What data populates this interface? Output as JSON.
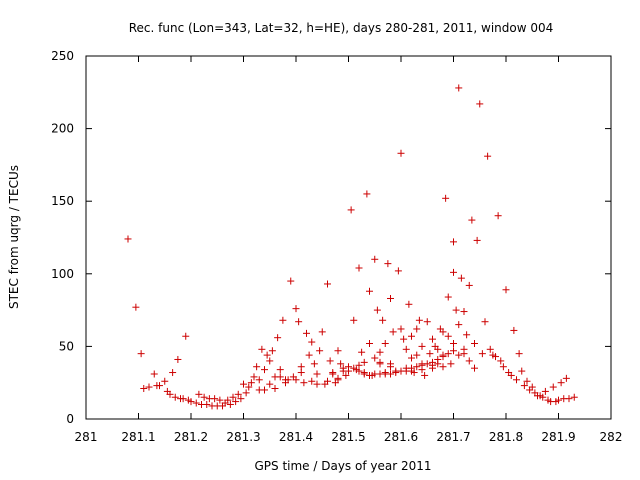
{
  "chart_data": {
    "type": "scatter",
    "title": "Rec. func (Lon=343, Lat=32, h=HE), days 280-281, 2011, window 004",
    "xlabel": "GPS time / Days of year 2011",
    "ylabel": "STEC from uqrg / TECUs",
    "xlim": [
      281,
      282
    ],
    "ylim": [
      0,
      250
    ],
    "xticks": [
      "281",
      "281.1",
      "281.2",
      "281.3",
      "281.4",
      "281.5",
      "281.6",
      "281.7",
      "281.8",
      "281.9",
      "282"
    ],
    "yticks": [
      "0",
      "50",
      "100",
      "150",
      "200",
      "250"
    ],
    "grid": false,
    "marker": "+",
    "color": "#cc0000",
    "series": [
      {
        "name": "STEC",
        "points": [
          [
            281.08,
            124
          ],
          [
            281.095,
            77
          ],
          [
            281.105,
            45
          ],
          [
            281.11,
            21
          ],
          [
            281.12,
            22
          ],
          [
            281.13,
            31
          ],
          [
            281.135,
            23
          ],
          [
            281.14,
            23
          ],
          [
            281.15,
            26
          ],
          [
            281.155,
            19
          ],
          [
            281.16,
            17
          ],
          [
            281.165,
            32
          ],
          [
            281.17,
            15
          ],
          [
            281.175,
            41
          ],
          [
            281.18,
            14
          ],
          [
            281.185,
            14
          ],
          [
            281.19,
            57
          ],
          [
            281.195,
            13
          ],
          [
            281.2,
            12
          ],
          [
            281.21,
            11
          ],
          [
            281.22,
            10
          ],
          [
            281.215,
            17
          ],
          [
            281.225,
            15
          ],
          [
            281.23,
            10
          ],
          [
            281.235,
            14
          ],
          [
            281.24,
            9
          ],
          [
            281.245,
            14
          ],
          [
            281.25,
            9
          ],
          [
            281.255,
            13
          ],
          [
            281.26,
            9
          ],
          [
            281.265,
            11
          ],
          [
            281.27,
            13
          ],
          [
            281.275,
            10
          ],
          [
            281.28,
            15
          ],
          [
            281.285,
            12
          ],
          [
            281.29,
            17
          ],
          [
            281.295,
            14
          ],
          [
            281.3,
            24
          ],
          [
            281.305,
            18
          ],
          [
            281.31,
            22
          ],
          [
            281.315,
            25
          ],
          [
            281.32,
            29
          ],
          [
            281.325,
            36
          ],
          [
            281.33,
            27
          ],
          [
            281.335,
            48
          ],
          [
            281.34,
            34
          ],
          [
            281.345,
            44
          ],
          [
            281.35,
            24
          ],
          [
            281.355,
            47
          ],
          [
            281.36,
            29
          ],
          [
            281.365,
            56
          ],
          [
            281.37,
            29
          ],
          [
            281.375,
            68
          ],
          [
            281.38,
            27
          ],
          [
            281.385,
            27
          ],
          [
            281.39,
            95
          ],
          [
            281.395,
            29
          ],
          [
            281.4,
            76
          ],
          [
            281.405,
            67
          ],
          [
            281.41,
            36
          ],
          [
            281.415,
            25
          ],
          [
            281.42,
            59
          ],
          [
            281.425,
            44
          ],
          [
            281.43,
            53
          ],
          [
            281.435,
            38
          ],
          [
            281.44,
            24
          ],
          [
            281.445,
            47
          ],
          [
            281.45,
            60
          ],
          [
            281.455,
            24
          ],
          [
            281.46,
            93
          ],
          [
            281.465,
            40
          ],
          [
            281.47,
            32
          ],
          [
            281.475,
            25
          ],
          [
            281.48,
            27
          ],
          [
            281.485,
            38
          ],
          [
            281.49,
            35
          ],
          [
            281.495,
            30
          ],
          [
            281.5,
            36
          ],
          [
            281.505,
            144
          ],
          [
            281.51,
            68
          ],
          [
            281.515,
            34
          ],
          [
            281.52,
            104
          ],
          [
            281.525,
            46
          ],
          [
            281.53,
            32
          ],
          [
            281.535,
            155
          ],
          [
            281.54,
            88
          ],
          [
            281.545,
            30
          ],
          [
            281.55,
            110
          ],
          [
            281.555,
            75
          ],
          [
            281.56,
            39
          ],
          [
            281.565,
            68
          ],
          [
            281.57,
            32
          ],
          [
            281.575,
            107
          ],
          [
            281.58,
            83
          ],
          [
            281.585,
            60
          ],
          [
            281.59,
            33
          ],
          [
            281.595,
            102
          ],
          [
            281.6,
            183
          ],
          [
            281.605,
            55
          ],
          [
            281.61,
            35
          ],
          [
            281.615,
            79
          ],
          [
            281.62,
            42
          ],
          [
            281.625,
            32
          ],
          [
            281.63,
            62
          ],
          [
            281.635,
            68
          ],
          [
            281.64,
            38
          ],
          [
            281.645,
            30
          ],
          [
            281.65,
            67
          ],
          [
            281.655,
            45
          ],
          [
            281.66,
            35
          ],
          [
            281.665,
            50
          ],
          [
            281.67,
            38
          ],
          [
            281.675,
            62
          ],
          [
            281.68,
            36
          ],
          [
            281.685,
            152
          ],
          [
            281.69,
            84
          ],
          [
            281.695,
            38
          ],
          [
            281.7,
            122
          ],
          [
            281.7,
            101
          ],
          [
            281.705,
            75
          ],
          [
            281.71,
            228
          ],
          [
            281.715,
            97
          ],
          [
            281.72,
            74
          ],
          [
            281.725,
            58
          ],
          [
            281.73,
            92
          ],
          [
            281.735,
            137
          ],
          [
            281.74,
            52
          ],
          [
            281.745,
            123
          ],
          [
            281.75,
            217
          ],
          [
            281.755,
            45
          ],
          [
            281.76,
            67
          ],
          [
            281.765,
            181
          ],
          [
            281.77,
            48
          ],
          [
            281.775,
            44
          ],
          [
            281.78,
            43
          ],
          [
            281.785,
            140
          ],
          [
            281.79,
            40
          ],
          [
            281.795,
            36
          ],
          [
            281.8,
            89
          ],
          [
            281.805,
            32
          ],
          [
            281.81,
            30
          ],
          [
            281.815,
            61
          ],
          [
            281.82,
            27
          ],
          [
            281.825,
            45
          ],
          [
            281.83,
            33
          ],
          [
            281.835,
            23
          ],
          [
            281.84,
            26
          ],
          [
            281.845,
            20
          ],
          [
            281.85,
            22
          ],
          [
            281.855,
            18
          ],
          [
            281.86,
            16
          ],
          [
            281.865,
            16
          ],
          [
            281.87,
            15
          ],
          [
            281.875,
            19
          ],
          [
            281.88,
            13
          ],
          [
            281.885,
            12
          ],
          [
            281.89,
            22
          ],
          [
            281.895,
            12
          ],
          [
            281.9,
            13
          ],
          [
            281.905,
            25
          ],
          [
            281.91,
            14
          ],
          [
            281.915,
            28
          ],
          [
            281.92,
            14
          ],
          [
            281.93,
            15
          ],
          [
            281.52,
            33
          ],
          [
            281.53,
            31
          ],
          [
            281.54,
            30
          ],
          [
            281.55,
            31
          ],
          [
            281.56,
            31
          ],
          [
            281.57,
            31
          ],
          [
            281.58,
            31
          ],
          [
            281.59,
            32
          ],
          [
            281.6,
            33
          ],
          [
            281.61,
            33
          ],
          [
            281.62,
            35
          ],
          [
            281.63,
            36
          ],
          [
            281.64,
            37
          ],
          [
            281.65,
            38
          ],
          [
            281.66,
            39
          ],
          [
            281.67,
            41
          ],
          [
            281.68,
            43
          ],
          [
            281.69,
            45
          ],
          [
            281.7,
            47
          ],
          [
            281.71,
            44
          ],
          [
            281.54,
            52
          ],
          [
            281.55,
            42
          ],
          [
            281.56,
            46
          ],
          [
            281.57,
            52
          ],
          [
            281.58,
            38
          ],
          [
            281.6,
            62
          ],
          [
            281.61,
            48
          ],
          [
            281.62,
            57
          ],
          [
            281.63,
            44
          ],
          [
            281.64,
            50
          ],
          [
            281.66,
            55
          ],
          [
            281.67,
            48
          ],
          [
            281.68,
            60
          ],
          [
            281.69,
            57
          ],
          [
            281.7,
            52
          ],
          [
            281.71,
            65
          ],
          [
            281.72,
            48
          ],
          [
            281.73,
            40
          ],
          [
            281.74,
            35
          ],
          [
            281.33,
            20
          ],
          [
            281.34,
            20
          ],
          [
            281.36,
            21
          ],
          [
            281.38,
            25
          ],
          [
            281.4,
            27
          ],
          [
            281.43,
            26
          ],
          [
            281.46,
            26
          ],
          [
            281.48,
            28
          ],
          [
            281.5,
            33
          ],
          [
            281.51,
            35
          ],
          [
            281.35,
            40
          ],
          [
            281.37,
            34
          ],
          [
            281.41,
            32
          ],
          [
            281.44,
            31
          ],
          [
            281.47,
            31
          ],
          [
            281.49,
            33
          ],
          [
            281.48,
            47
          ],
          [
            281.52,
            37
          ],
          [
            281.53,
            39
          ],
          [
            281.56,
            38
          ],
          [
            281.58,
            36
          ],
          [
            281.62,
            33
          ],
          [
            281.64,
            34
          ],
          [
            281.66,
            37
          ],
          [
            281.68,
            44
          ],
          [
            281.72,
            45
          ]
        ]
      }
    ]
  }
}
